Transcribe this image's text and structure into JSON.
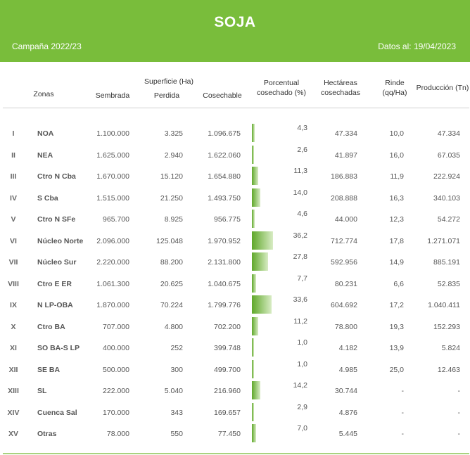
{
  "header": {
    "title": "SOJA",
    "campaign": "Campaña 2022/23",
    "date": "Datos al: 19/04/2023"
  },
  "columns": {
    "zonas": "Zonas",
    "superficie": "Superficie (Ha)",
    "sembrada": "Sembrada",
    "perdida": "Perdida",
    "cosechable": "Cosechable",
    "porcentual_1": "Porcentual",
    "porcentual_2": "cosechado (%)",
    "hectareas_1": "Hectáreas",
    "hectareas_2": "cosechadas",
    "rinde_1": "Rinde",
    "rinde_2": "(qq/Ha)",
    "produccion": "Producción (Tn)"
  },
  "rows": [
    {
      "num": "I",
      "zona": "NOA",
      "sembrada": "1.100.000",
      "perdida": "3.325",
      "cosechable": "1.096.675",
      "pct": "4,3",
      "pct_value": 4.3,
      "hectareas": "47.334",
      "rinde": "10,0",
      "produccion": "47.334"
    },
    {
      "num": "II",
      "zona": "NEA",
      "sembrada": "1.625.000",
      "perdida": "2.940",
      "cosechable": "1.622.060",
      "pct": "2,6",
      "pct_value": 2.6,
      "hectareas": "41.897",
      "rinde": "16,0",
      "produccion": "67.035"
    },
    {
      "num": "III",
      "zona": "Ctro N Cba",
      "sembrada": "1.670.000",
      "perdida": "15.120",
      "cosechable": "1.654.880",
      "pct": "11,3",
      "pct_value": 11.3,
      "hectareas": "186.883",
      "rinde": "11,9",
      "produccion": "222.924"
    },
    {
      "num": "IV",
      "zona": "S Cba",
      "sembrada": "1.515.000",
      "perdida": "21.250",
      "cosechable": "1.493.750",
      "pct": "14,0",
      "pct_value": 14.0,
      "hectareas": "208.888",
      "rinde": "16,3",
      "produccion": "340.103"
    },
    {
      "num": "V",
      "zona": "Ctro N SFe",
      "sembrada": "965.700",
      "perdida": "8.925",
      "cosechable": "956.775",
      "pct": "4,6",
      "pct_value": 4.6,
      "hectareas": "44.000",
      "rinde": "12,3",
      "produccion": "54.272"
    },
    {
      "num": "VI",
      "zona": "Núcleo Norte",
      "sembrada": "2.096.000",
      "perdida": "125.048",
      "cosechable": "1.970.952",
      "pct": "36,2",
      "pct_value": 36.2,
      "hectareas": "712.774",
      "rinde": "17,8",
      "produccion": "1.271.071"
    },
    {
      "num": "VII",
      "zona": "Núcleo Sur",
      "sembrada": "2.220.000",
      "perdida": "88.200",
      "cosechable": "2.131.800",
      "pct": "27,8",
      "pct_value": 27.8,
      "hectareas": "592.956",
      "rinde": "14,9",
      "produccion": "885.191"
    },
    {
      "num": "VIII",
      "zona": "Ctro E ER",
      "sembrada": "1.061.300",
      "perdida": "20.625",
      "cosechable": "1.040.675",
      "pct": "7,7",
      "pct_value": 7.7,
      "hectareas": "80.231",
      "rinde": "6,6",
      "produccion": "52.835"
    },
    {
      "num": "IX",
      "zona": "N LP-OBA",
      "sembrada": "1.870.000",
      "perdida": "70.224",
      "cosechable": "1.799.776",
      "pct": "33,6",
      "pct_value": 33.6,
      "hectareas": "604.692",
      "rinde": "17,2",
      "produccion": "1.040.411"
    },
    {
      "num": "X",
      "zona": "Ctro BA",
      "sembrada": "707.000",
      "perdida": "4.800",
      "cosechable": "702.200",
      "pct": "11,2",
      "pct_value": 11.2,
      "hectareas": "78.800",
      "rinde": "19,3",
      "produccion": "152.293"
    },
    {
      "num": "XI",
      "zona": "SO BA-S LP",
      "sembrada": "400.000",
      "perdida": "252",
      "cosechable": "399.748",
      "pct": "1,0",
      "pct_value": 1.0,
      "hectareas": "4.182",
      "rinde": "13,9",
      "produccion": "5.824"
    },
    {
      "num": "XII",
      "zona": "SE BA",
      "sembrada": "500.000",
      "perdida": "300",
      "cosechable": "499.700",
      "pct": "1,0",
      "pct_value": 1.0,
      "hectareas": "4.985",
      "rinde": "25,0",
      "produccion": "12.463"
    },
    {
      "num": "XIII",
      "zona": "SL",
      "sembrada": "222.000",
      "perdida": "5.040",
      "cosechable": "216.960",
      "pct": "14,2",
      "pct_value": 14.2,
      "hectareas": "30.744",
      "rinde": "-",
      "produccion": "-"
    },
    {
      "num": "XIV",
      "zona": "Cuenca Sal",
      "sembrada": "170.000",
      "perdida": "343",
      "cosechable": "169.657",
      "pct": "2,9",
      "pct_value": 2.9,
      "hectareas": "4.876",
      "rinde": "-",
      "produccion": "-"
    },
    {
      "num": "XV",
      "zona": "Otras",
      "sembrada": "78.000",
      "perdida": "550",
      "cosechable": "77.450",
      "pct": "7,0",
      "pct_value": 7.0,
      "hectareas": "5.445",
      "rinde": "-",
      "produccion": "-"
    }
  ],
  "colors": {
    "header_green": "#79bd3b",
    "bar_dark": "#5fa82a",
    "bar_light": "#d8ecc4"
  }
}
